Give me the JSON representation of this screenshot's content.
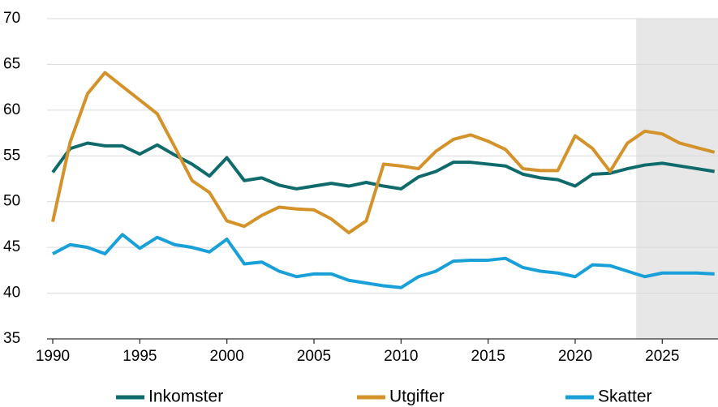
{
  "chart_data": {
    "type": "line",
    "x": [
      1990,
      1991,
      1992,
      1993,
      1994,
      1995,
      1996,
      1997,
      1998,
      1999,
      2000,
      2001,
      2002,
      2003,
      2004,
      2005,
      2006,
      2007,
      2008,
      2009,
      2010,
      2011,
      2012,
      2013,
      2014,
      2015,
      2016,
      2017,
      2018,
      2019,
      2020,
      2021,
      2022,
      2023,
      2024,
      2025,
      2026,
      2027,
      2028
    ],
    "series": [
      {
        "name": "Inkomster",
        "color": "#0f6b6b",
        "values": [
          53.2,
          55.8,
          56.4,
          56.1,
          56.1,
          55.2,
          56.2,
          55.1,
          54.1,
          52.8,
          54.8,
          52.3,
          52.6,
          51.8,
          51.4,
          51.7,
          52.0,
          51.7,
          52.1,
          51.7,
          51.4,
          52.7,
          53.3,
          54.3,
          54.3,
          54.1,
          53.9,
          53.0,
          52.6,
          52.4,
          51.7,
          53.0,
          53.1,
          53.6,
          54.0,
          54.2,
          53.9,
          53.6,
          53.3
        ]
      },
      {
        "name": "Utgifter",
        "color": "#d4922a",
        "values": [
          47.8,
          56.5,
          61.8,
          64.1,
          62.6,
          61.1,
          59.6,
          56.0,
          52.3,
          51.0,
          47.9,
          47.3,
          48.5,
          49.4,
          49.2,
          49.1,
          48.1,
          46.6,
          47.9,
          54.1,
          53.9,
          53.6,
          55.5,
          56.8,
          57.3,
          56.6,
          55.7,
          53.6,
          53.4,
          53.4,
          57.2,
          55.8,
          53.3,
          56.4,
          57.7,
          57.4,
          56.4,
          55.9,
          55.4
        ]
      },
      {
        "name": "Skatter",
        "color": "#1aa0d8",
        "values": [
          44.3,
          45.3,
          45.0,
          44.3,
          46.4,
          44.9,
          46.1,
          45.3,
          45.0,
          44.5,
          45.9,
          43.2,
          43.4,
          42.4,
          41.8,
          42.1,
          42.1,
          41.4,
          41.1,
          40.8,
          40.6,
          41.8,
          42.4,
          43.5,
          43.6,
          43.6,
          43.8,
          42.8,
          42.4,
          42.2,
          41.8,
          43.1,
          43.0,
          42.4,
          41.8,
          42.2,
          42.2,
          42.2,
          42.1
        ]
      }
    ],
    "xlim": [
      1990,
      2028.2
    ],
    "xticks": [
      1990,
      1995,
      2000,
      2005,
      2010,
      2015,
      2020,
      2025
    ],
    "ylim": [
      35,
      70
    ],
    "yticks": [
      35,
      40,
      45,
      50,
      55,
      60,
      65,
      70
    ],
    "grid": true,
    "shaded_xrange": [
      2023.5,
      2028.2
    ],
    "shade_color": "#e6e7e6",
    "legend": "bottom"
  }
}
